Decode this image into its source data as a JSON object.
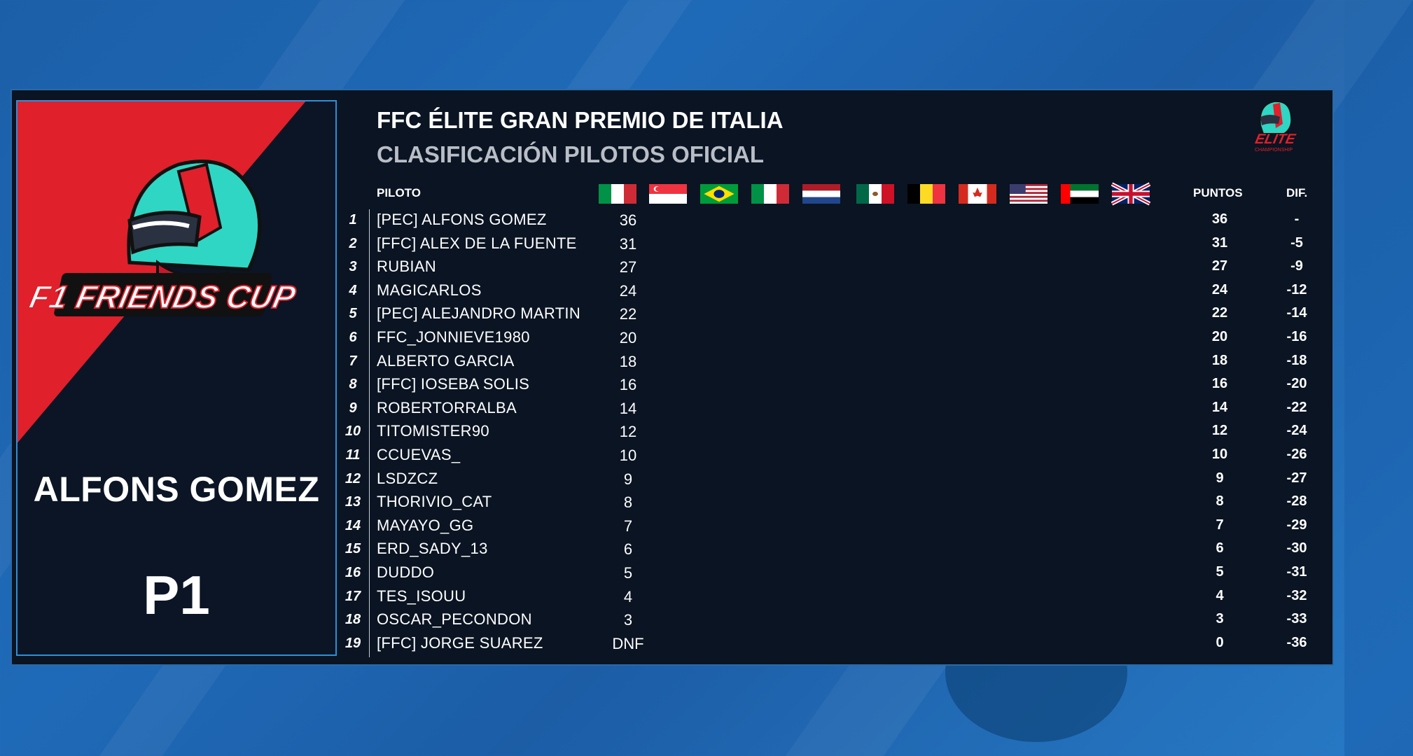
{
  "event": {
    "title": "FFC ÉLITE GRAN PREMIO DE ITALIA",
    "subtitle": "CLASIFICACIÓN PILOTOS OFICIAL"
  },
  "featured": {
    "name": "ALFONS GOMEZ",
    "position": "P1",
    "logo_text": "F1 FRIENDS CUP"
  },
  "brand": {
    "logo_text": "ELITE",
    "logo_subtext": "CHAMPIONSHIP"
  },
  "table": {
    "headers": {
      "driver": "PILOTO",
      "points": "PUNTOS",
      "diff": "DIF."
    },
    "races": [
      "italy",
      "singapore",
      "brazil",
      "italy",
      "netherlands",
      "mexico",
      "belgium",
      "canada",
      "usa",
      "uae",
      "uk"
    ],
    "rows": [
      {
        "pos": "1",
        "name": "[PEC] ALFONS GOMEZ",
        "race": "36",
        "points": "36",
        "diff": "-"
      },
      {
        "pos": "2",
        "name": "[FFC] ALEX DE LA FUENTE",
        "race": "31",
        "points": "31",
        "diff": "-5"
      },
      {
        "pos": "3",
        "name": "RUBIAN",
        "race": "27",
        "points": "27",
        "diff": "-9"
      },
      {
        "pos": "4",
        "name": "MAGICARLOS",
        "race": "24",
        "points": "24",
        "diff": "-12"
      },
      {
        "pos": "5",
        "name": "[PEC] ALEJANDRO MARTIN",
        "race": "22",
        "points": "22",
        "diff": "-14"
      },
      {
        "pos": "6",
        "name": "FFC_JONNIEVE1980",
        "race": "20",
        "points": "20",
        "diff": "-16"
      },
      {
        "pos": "7",
        "name": "ALBERTO GARCIA",
        "race": "18",
        "points": "18",
        "diff": "-18"
      },
      {
        "pos": "8",
        "name": "[FFC] IOSEBA SOLIS",
        "race": "16",
        "points": "16",
        "diff": "-20"
      },
      {
        "pos": "9",
        "name": "ROBERTORRALBA",
        "race": "14",
        "points": "14",
        "diff": "-22"
      },
      {
        "pos": "10",
        "name": "TITOMISTER90",
        "race": "12",
        "points": "12",
        "diff": "-24"
      },
      {
        "pos": "11",
        "name": "CCUEVAS_",
        "race": "10",
        "points": "10",
        "diff": "-26"
      },
      {
        "pos": "12",
        "name": "LSDZCZ",
        "race": "9",
        "points": "9",
        "diff": "-27"
      },
      {
        "pos": "13",
        "name": "THORIVIO_CAT",
        "race": "8",
        "points": "8",
        "diff": "-28"
      },
      {
        "pos": "14",
        "name": "MAYAYO_GG",
        "race": "7",
        "points": "7",
        "diff": "-29"
      },
      {
        "pos": "15",
        "name": "ERD_SADY_13",
        "race": "6",
        "points": "6",
        "diff": "-30"
      },
      {
        "pos": "16",
        "name": "DUDDO",
        "race": "5",
        "points": "5",
        "diff": "-31"
      },
      {
        "pos": "17",
        "name": "TES_ISOUU",
        "race": "4",
        "points": "4",
        "diff": "-32"
      },
      {
        "pos": "18",
        "name": "OSCAR_PECONDON",
        "race": "3",
        "points": "3",
        "diff": "-33"
      },
      {
        "pos": "19",
        "name": "[FFC] JORGE SUAREZ",
        "race": "DNF",
        "points": "0",
        "diff": "-36"
      }
    ]
  },
  "colors": {
    "board_bg": "#0a1422",
    "accent_red": "#e0202b",
    "accent_teal": "#2fd6c4",
    "border_blue": "#2f8fd8"
  }
}
